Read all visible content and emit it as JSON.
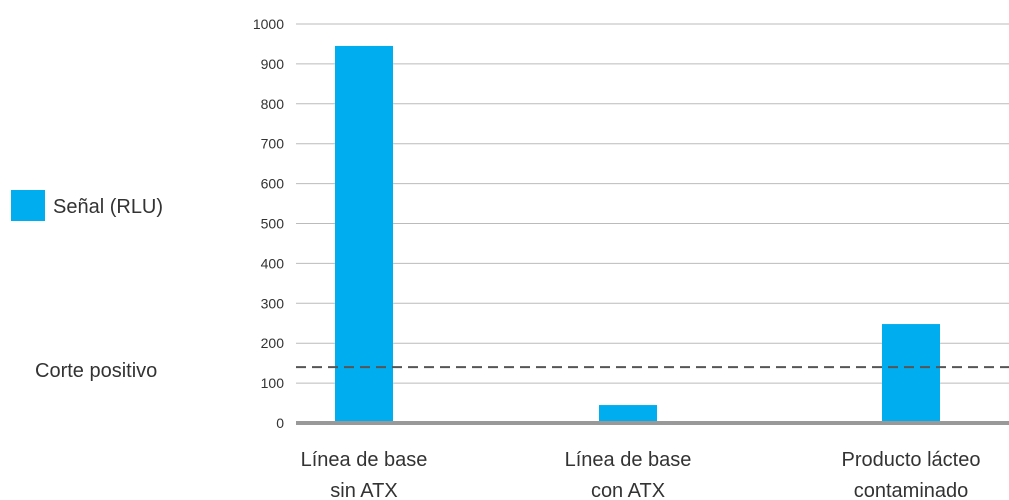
{
  "chart_data": {
    "type": "bar",
    "categories": [
      [
        "Línea de base",
        "sin ATX"
      ],
      [
        "Línea de base",
        "con ATX"
      ],
      [
        "Producto lácteo",
        "contaminado"
      ]
    ],
    "series": [
      {
        "name": "Señal (RLU)",
        "values": [
          945,
          45,
          248
        ],
        "color": "#00aeef"
      }
    ],
    "ylim": [
      0,
      1000
    ],
    "yticks": [
      0,
      100,
      200,
      300,
      400,
      500,
      600,
      700,
      800,
      900,
      1000
    ],
    "grid": true,
    "legend_position": "left",
    "reference_line": {
      "label": "Corte positivo",
      "value": 140,
      "style": "dashed",
      "color": "#555555"
    },
    "colors": {
      "bar": "#00aeef",
      "grid": "#bbbbbb",
      "baseline": "#999999",
      "text": "#333333"
    }
  }
}
